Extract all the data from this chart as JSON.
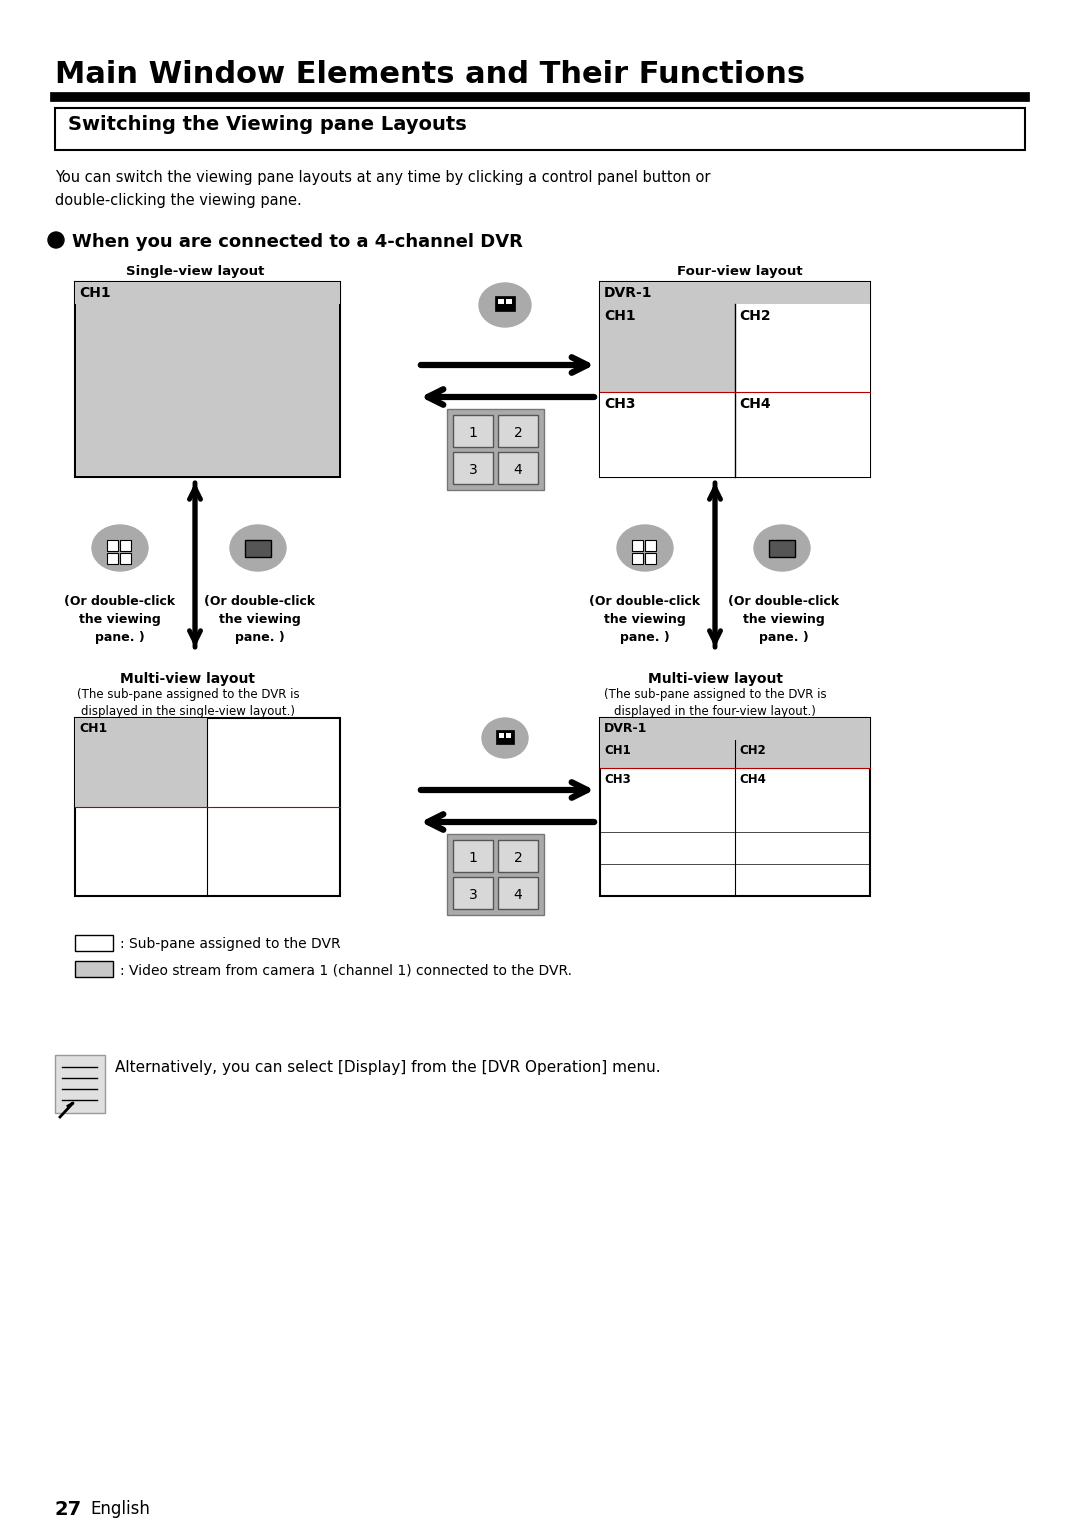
{
  "title": "Main Window Elements and Their Functions",
  "section_title": "Switching the Viewing pane Layouts",
  "body_text": "You can switch the viewing pane layouts at any time by clicking a control panel button or\ndouble-clicking the viewing pane.",
  "bullet_title": "When you are connected to a 4-channel DVR",
  "single_view_label": "Single-view layout",
  "four_view_label": "Four-view layout",
  "multi_view_label1": "Multi-view layout",
  "multi_view_sub1": "(The sub-pane assigned to the DVR is\ndisplayed in the single-view layout.)",
  "multi_view_label2": "Multi-view layout",
  "multi_view_sub2": "(The sub-pane assigned to the DVR is\ndisplayed in the four-view layout.)",
  "legend_white": ": Sub-pane assigned to the DVR",
  "legend_gray": ": Video stream from camera 1 (channel 1) connected to the DVR.",
  "note_text": "Alternatively, you can select [Display] from the [DVR Operation] menu.",
  "page_label": "27",
  "page_lang": "English",
  "bg_color": "#ffffff",
  "gray_fill": "#c8c8c8",
  "button_bg": "#d0d0d0",
  "border_color": "#000000"
}
